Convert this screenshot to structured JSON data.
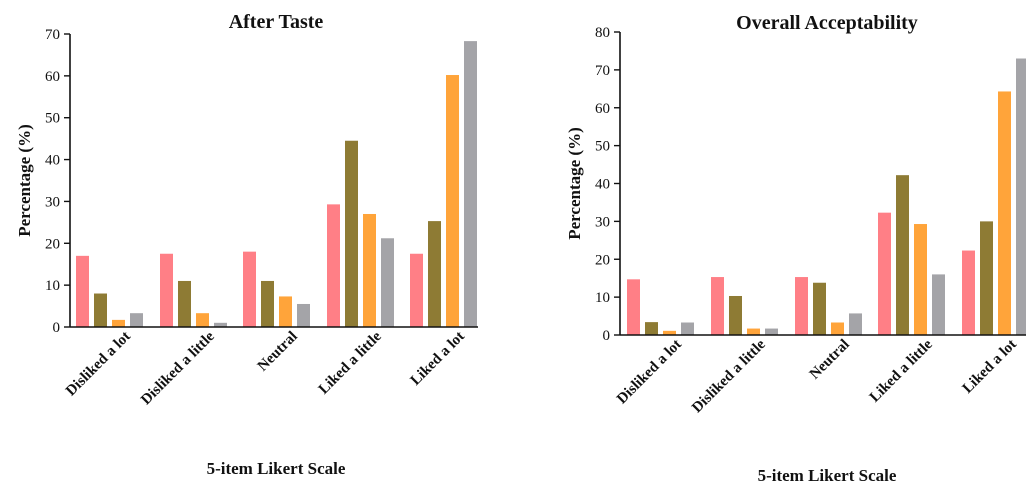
{
  "chart_data": [
    {
      "type": "bar",
      "title": "After Taste",
      "xlabel": "5-item Likert Scale",
      "ylabel": "Percentage (%)",
      "ylim": [
        0,
        70
      ],
      "yticks": [
        0,
        10,
        20,
        30,
        40,
        50,
        60,
        70
      ],
      "categories": [
        "Disliked a lot",
        "Disliked a little",
        "Neutral",
        "Liked a little",
        "Liked a lot"
      ],
      "series": [
        {
          "color": "#ff7f86",
          "values": [
            17,
            17.5,
            18,
            29.3,
            17.5
          ]
        },
        {
          "color": "#8e7b34",
          "values": [
            8,
            11,
            11,
            44.5,
            25.3
          ]
        },
        {
          "color": "#ffa43a",
          "values": [
            1.7,
            3.3,
            7.3,
            27,
            60.2
          ]
        },
        {
          "color": "#a4a4a8",
          "values": [
            3.3,
            1,
            5.5,
            21.2,
            68.3
          ]
        }
      ],
      "grid": false,
      "legend": "none"
    },
    {
      "type": "bar",
      "title": "Overall Acceptability",
      "xlabel": "5-item Likert Scale",
      "ylabel": "Percentage (%)",
      "ylim": [
        0,
        80
      ],
      "yticks": [
        0,
        10,
        20,
        30,
        40,
        50,
        60,
        70,
        80
      ],
      "categories": [
        "Disliked a lot",
        "Disliked a little",
        "Neutral",
        "Liked a little",
        "Liked a lot"
      ],
      "series": [
        {
          "color": "#ff7f86",
          "values": [
            14.7,
            15.3,
            15.3,
            32.3,
            22.3
          ]
        },
        {
          "color": "#8e7b34",
          "values": [
            3.4,
            10.3,
            13.8,
            42.2,
            30
          ]
        },
        {
          "color": "#ffa43a",
          "values": [
            1.1,
            1.7,
            3.3,
            29.3,
            64.3
          ]
        },
        {
          "color": "#a4a4a8",
          "values": [
            3.3,
            1.7,
            5.7,
            16,
            73
          ]
        }
      ],
      "grid": false,
      "legend": "none"
    }
  ]
}
